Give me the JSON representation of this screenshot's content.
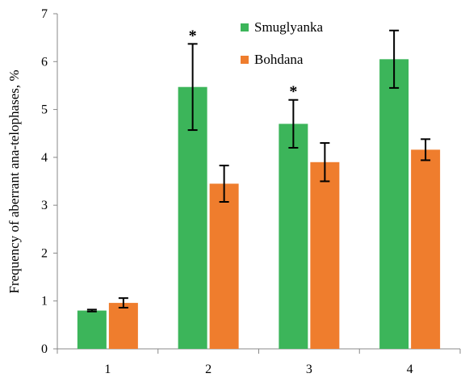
{
  "chart_data": {
    "type": "bar",
    "title": "",
    "xlabel": "",
    "ylabel": "Frequency of aberrant ana-telophases, %",
    "ylim": [
      0,
      7
    ],
    "yticks": [
      "0",
      "1",
      "2",
      "3",
      "4",
      "5",
      "6",
      "7"
    ],
    "categories": [
      "1",
      "2",
      "3",
      "4"
    ],
    "series": [
      {
        "name": "Smuglyanka",
        "color": "#3cb55a",
        "values": [
          0.8,
          5.47,
          4.7,
          6.05
        ],
        "errors": [
          0.02,
          0.9,
          0.5,
          0.6
        ]
      },
      {
        "name": "Bohdana",
        "color": "#ef7d2d",
        "values": [
          0.96,
          3.45,
          3.9,
          4.16
        ],
        "errors": [
          0.1,
          0.38,
          0.4,
          0.22
        ]
      }
    ],
    "significance_markers": [
      {
        "category": "2",
        "series": "Smuglyanka",
        "text": "*"
      },
      {
        "category": "3",
        "series": "Smuglyanka",
        "text": "*"
      }
    ],
    "legend": "top-center",
    "grid": false
  }
}
